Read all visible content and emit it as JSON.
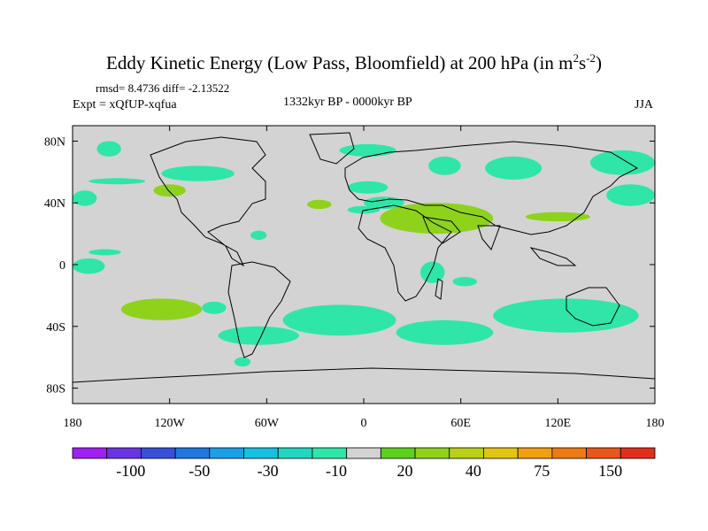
{
  "title": {
    "main": "Eddy Kinetic Energy (Low Pass, Bloomfield) at 200 hPa (in m",
    "sup1": "2",
    "mid": "s",
    "sup2": "-2",
    "end": ")"
  },
  "stats": {
    "rmsd": "rmsd= 8.4736 diff= -2.13522",
    "expt": "Expt = xQfUP-xqfua",
    "period": "1332kyr BP - 0000kyr BP",
    "season": "JJA"
  },
  "map": {
    "lon_range": [
      -180,
      180
    ],
    "lat_range": [
      -90,
      90
    ],
    "lon_ticks": [
      "180",
      "120W",
      "60W",
      "0",
      "60E",
      "120E",
      "180"
    ],
    "lat_ticks": [
      "80N",
      "40N",
      "0",
      "40S",
      "80S"
    ],
    "background_color": "#d3d3d3"
  },
  "colorbar": {
    "labels": [
      "-100",
      "-50",
      "-30",
      "-10",
      "20",
      "40",
      "75",
      "150"
    ],
    "colors": [
      "#a020f0",
      "#6a35e0",
      "#3a4fd8",
      "#1f77e0",
      "#1aa0e6",
      "#18bfe0",
      "#22d6c0",
      "#2fe6a8",
      "#d3d3d3",
      "#5cd11c",
      "#8fd21b",
      "#b9cf18",
      "#e2c514",
      "#f0a010",
      "#ee7a14",
      "#e8561a",
      "#e0301c"
    ]
  },
  "chart_data": {
    "type": "heatmap",
    "title": "Eddy Kinetic Energy (Low Pass, Bloomfield) at 200 hPa (in m2s-2)",
    "levels": [
      -150,
      -100,
      -75,
      -50,
      -40,
      -30,
      -20,
      -10,
      10,
      20,
      30,
      40,
      50,
      75,
      100,
      150
    ],
    "regions": [
      {
        "lon": [
          -165,
          -150
        ],
        "lat": [
          70,
          80
        ],
        "value": -10
      },
      {
        "lon": [
          -125,
          -80
        ],
        "lat": [
          54,
          64
        ],
        "value": -10
      },
      {
        "lon": [
          -15,
          20
        ],
        "lat": [
          70,
          78
        ],
        "value": -10
      },
      {
        "lon": [
          40,
          60
        ],
        "lat": [
          58,
          70
        ],
        "value": -10
      },
      {
        "lon": [
          75,
          110
        ],
        "lat": [
          55,
          70
        ],
        "value": -10
      },
      {
        "lon": [
          -10,
          15
        ],
        "lat": [
          46,
          54
        ],
        "value": -10
      },
      {
        "lon": [
          0,
          25
        ],
        "lat": [
          36,
          44
        ],
        "value": -10
      },
      {
        "lon": [
          -10,
          10
        ],
        "lat": [
          33,
          38
        ],
        "value": -10
      },
      {
        "lon": [
          -170,
          -135
        ],
        "lat": [
          52,
          56
        ],
        "value": -10
      },
      {
        "lon": [
          -170,
          -150
        ],
        "lat": [
          6,
          10
        ],
        "value": -10
      },
      {
        "lon": [
          140,
          180
        ],
        "lat": [
          58,
          74
        ],
        "value": -10
      },
      {
        "lon": [
          150,
          180
        ],
        "lat": [
          38,
          52
        ],
        "value": -10
      },
      {
        "lon": [
          -180,
          -165
        ],
        "lat": [
          38,
          48
        ],
        "value": -10
      },
      {
        "lon": [
          -130,
          -110
        ],
        "lat": [
          44,
          52
        ],
        "value": 20
      },
      {
        "lon": [
          -35,
          -20
        ],
        "lat": [
          36,
          42
        ],
        "value": 20
      },
      {
        "lon": [
          10,
          80
        ],
        "lat": [
          20,
          40
        ],
        "value": 20
      },
      {
        "lon": [
          100,
          140
        ],
        "lat": [
          28,
          34
        ],
        "value": 20
      },
      {
        "lon": [
          -70,
          -60
        ],
        "lat": [
          16,
          22
        ],
        "value": -10
      },
      {
        "lon": [
          -150,
          -100
        ],
        "lat": [
          -36,
          -22
        ],
        "value": 20
      },
      {
        "lon": [
          -100,
          -85
        ],
        "lat": [
          -32,
          -24
        ],
        "value": -10
      },
      {
        "lon": [
          -50,
          20
        ],
        "lat": [
          -46,
          -26
        ],
        "value": -10
      },
      {
        "lon": [
          20,
          80
        ],
        "lat": [
          -52,
          -36
        ],
        "value": -10
      },
      {
        "lon": [
          80,
          170
        ],
        "lat": [
          -44,
          -22
        ],
        "value": -10
      },
      {
        "lon": [
          -90,
          -40
        ],
        "lat": [
          -52,
          -40
        ],
        "value": -10
      },
      {
        "lon": [
          35,
          50
        ],
        "lat": [
          -12,
          2
        ],
        "value": -10
      },
      {
        "lon": [
          55,
          70
        ],
        "lat": [
          -14,
          -8
        ],
        "value": -10
      },
      {
        "lon": [
          -180,
          -160
        ],
        "lat": [
          -6,
          4
        ],
        "value": -10
      },
      {
        "lon": [
          -80,
          -70
        ],
        "lat": [
          -66,
          -60
        ],
        "value": -10
      }
    ]
  }
}
